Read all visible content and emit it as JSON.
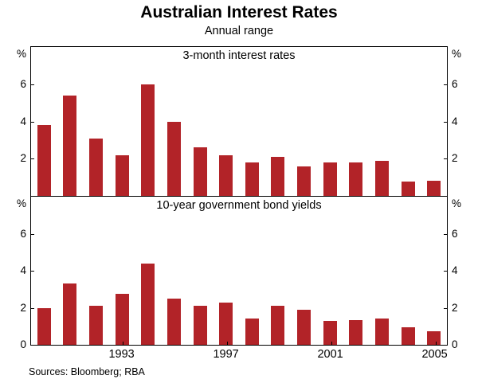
{
  "page": {
    "title": "Australian Interest Rates",
    "subtitle": "Annual range",
    "source": "Sources: Bloomberg; RBA"
  },
  "x_axis": {
    "labels": [
      "1993",
      "1997",
      "2001",
      "2005"
    ],
    "label_indices": [
      3,
      7,
      11,
      15
    ]
  },
  "chart_data": [
    {
      "type": "bar",
      "title": "3-month interest rates",
      "unit": "%",
      "categories": [
        1990,
        1991,
        1992,
        1993,
        1994,
        1995,
        1996,
        1997,
        1998,
        1999,
        2000,
        2001,
        2002,
        2003,
        2004,
        2005
      ],
      "values": [
        3.8,
        5.4,
        3.1,
        2.2,
        6.0,
        4.0,
        2.6,
        2.2,
        1.8,
        2.1,
        1.6,
        1.8,
        1.8,
        1.9,
        0.75,
        0.8
      ],
      "ylim": [
        0,
        8
      ],
      "yticks": [
        2,
        4,
        6
      ],
      "bar_color": "#b22328",
      "legend": "none",
      "grid": "off"
    },
    {
      "type": "bar",
      "title": "10-year government bond yields",
      "unit": "%",
      "categories": [
        1990,
        1991,
        1992,
        1993,
        1994,
        1995,
        1996,
        1997,
        1998,
        1999,
        2000,
        2001,
        2002,
        2003,
        2004,
        2005
      ],
      "values": [
        2.0,
        3.3,
        2.1,
        2.75,
        4.4,
        2.5,
        2.1,
        2.3,
        1.4,
        2.1,
        1.9,
        1.3,
        1.35,
        1.4,
        0.95,
        0.75
      ],
      "ylim": [
        0,
        8
      ],
      "yticks": [
        0,
        2,
        4,
        6
      ],
      "bar_color": "#b22328",
      "legend": "none",
      "grid": "off"
    }
  ]
}
